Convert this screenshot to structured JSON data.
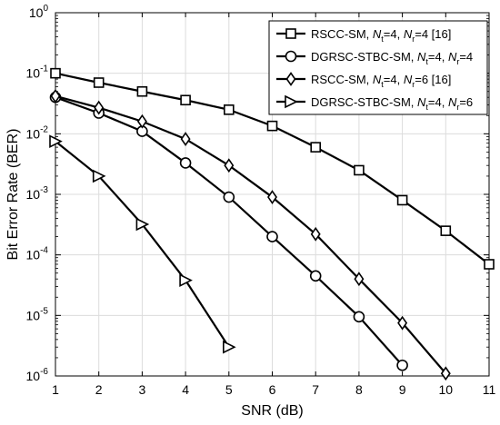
{
  "chart_data": {
    "type": "line",
    "xlabel": "SNR (dB)",
    "ylabel": "Bit Error Rate (BER)",
    "xlim": [
      1,
      11
    ],
    "ylim": [
      1e-06,
      1
    ],
    "yscale": "log",
    "grid": true,
    "legend_position": "top-right",
    "x_ticks": [
      "1",
      "2",
      "3",
      "4",
      "5",
      "6",
      "7",
      "8",
      "9",
      "10",
      "11"
    ],
    "y_ticks": [
      {
        "base": "10",
        "exp": "0",
        "value": 1
      },
      {
        "base": "10",
        "exp": "-1",
        "value": 0.1
      },
      {
        "base": "10",
        "exp": "-2",
        "value": 0.01
      },
      {
        "base": "10",
        "exp": "-3",
        "value": 0.001
      },
      {
        "base": "10",
        "exp": "-4",
        "value": 0.0001
      },
      {
        "base": "10",
        "exp": "-5",
        "value": 1e-05
      },
      {
        "base": "10",
        "exp": "-6",
        "value": 1e-06
      }
    ],
    "series": [
      {
        "name": "RSCC-SM, Nt=4, Nr=4 [16]",
        "legend_parts": {
          "pre": "RSCC-SM, ",
          "nt_main": "N",
          "nt_sub": "t",
          "nt_val": "=4, ",
          "nr_main": "N",
          "nr_sub": "r",
          "nr_val": "=4 [16]"
        },
        "marker": "square",
        "x": [
          1,
          2,
          3,
          4,
          5,
          6,
          7,
          8,
          9,
          10,
          11
        ],
        "y": [
          0.1,
          0.07,
          0.05,
          0.036,
          0.025,
          0.0135,
          0.006,
          0.0025,
          0.0008,
          0.00025,
          7e-05
        ]
      },
      {
        "name": "DGRSC-STBC-SM, Nt=4, Nr=4",
        "legend_parts": {
          "pre": "DGRSC-STBC-SM, ",
          "nt_main": "N",
          "nt_sub": "t",
          "nt_val": "=4, ",
          "nr_main": "N",
          "nr_sub": "r",
          "nr_val": "=4"
        },
        "marker": "circle",
        "x": [
          1,
          2,
          3,
          4,
          5,
          6,
          7,
          8,
          9
        ],
        "y": [
          0.04,
          0.022,
          0.011,
          0.0033,
          0.0009,
          0.0002,
          4.5e-05,
          9.5e-06,
          1.5e-06
        ]
      },
      {
        "name": "RSCC-SM, Nt=4, Nr=6 [16]",
        "legend_parts": {
          "pre": "RSCC-SM, ",
          "nt_main": "N",
          "nt_sub": "t",
          "nt_val": "=4, ",
          "nr_main": "N",
          "nr_sub": "r",
          "nr_val": "=6 [16]"
        },
        "marker": "diamond",
        "x": [
          1,
          2,
          3,
          4,
          5,
          6,
          7,
          8,
          9,
          10
        ],
        "y": [
          0.042,
          0.027,
          0.016,
          0.0082,
          0.003,
          0.0009,
          0.00022,
          4e-05,
          7.5e-06,
          1.1e-06
        ]
      },
      {
        "name": "DGRSC-STBC-SM, Nt=4, Nr=6",
        "legend_parts": {
          "pre": "DGRSC-STBC-SM, ",
          "nt_main": "N",
          "nt_sub": "t",
          "nt_val": "=4, ",
          "nr_main": "N",
          "nr_sub": "r",
          "nr_val": "=6"
        },
        "marker": "triangle-right",
        "x": [
          1,
          2,
          3,
          4,
          5
        ],
        "y": [
          0.0075,
          0.002,
          0.00032,
          3.8e-05,
          3e-06
        ]
      }
    ]
  }
}
